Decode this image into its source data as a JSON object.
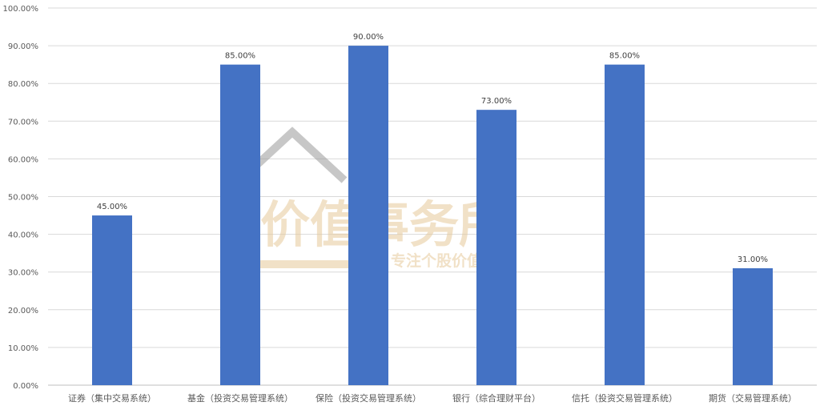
{
  "chart_data": {
    "type": "bar",
    "title": "",
    "xlabel": "",
    "ylabel": "",
    "categories": [
      "证券（集中交易系统）",
      "基金（投资交易管理系统）",
      "保险（投资交易管理系统）",
      "银行（综合理财平台）",
      "信托（投资交易管理系统）",
      "期货（交易管理系统）"
    ],
    "values": [
      45,
      85,
      90,
      73,
      85,
      31
    ],
    "data_labels": [
      "45.00%",
      "85.00%",
      "90.00%",
      "73.00%",
      "85.00%",
      "31.00%"
    ],
    "ylim": [
      0,
      100
    ],
    "yticks": [
      0,
      10,
      20,
      30,
      40,
      50,
      60,
      70,
      80,
      90,
      100
    ],
    "ytick_labels": [
      "0.00%",
      "10.00%",
      "20.00%",
      "30.00%",
      "40.00%",
      "50.00%",
      "60.00%",
      "70.00%",
      "80.00%",
      "90.00%",
      "100.00%"
    ],
    "grid": true,
    "legend": "none",
    "bar_color": "#4472C4"
  },
  "watermark": {
    "title": "价值事务所",
    "subtitle": "专注个股价值挖掘"
  }
}
